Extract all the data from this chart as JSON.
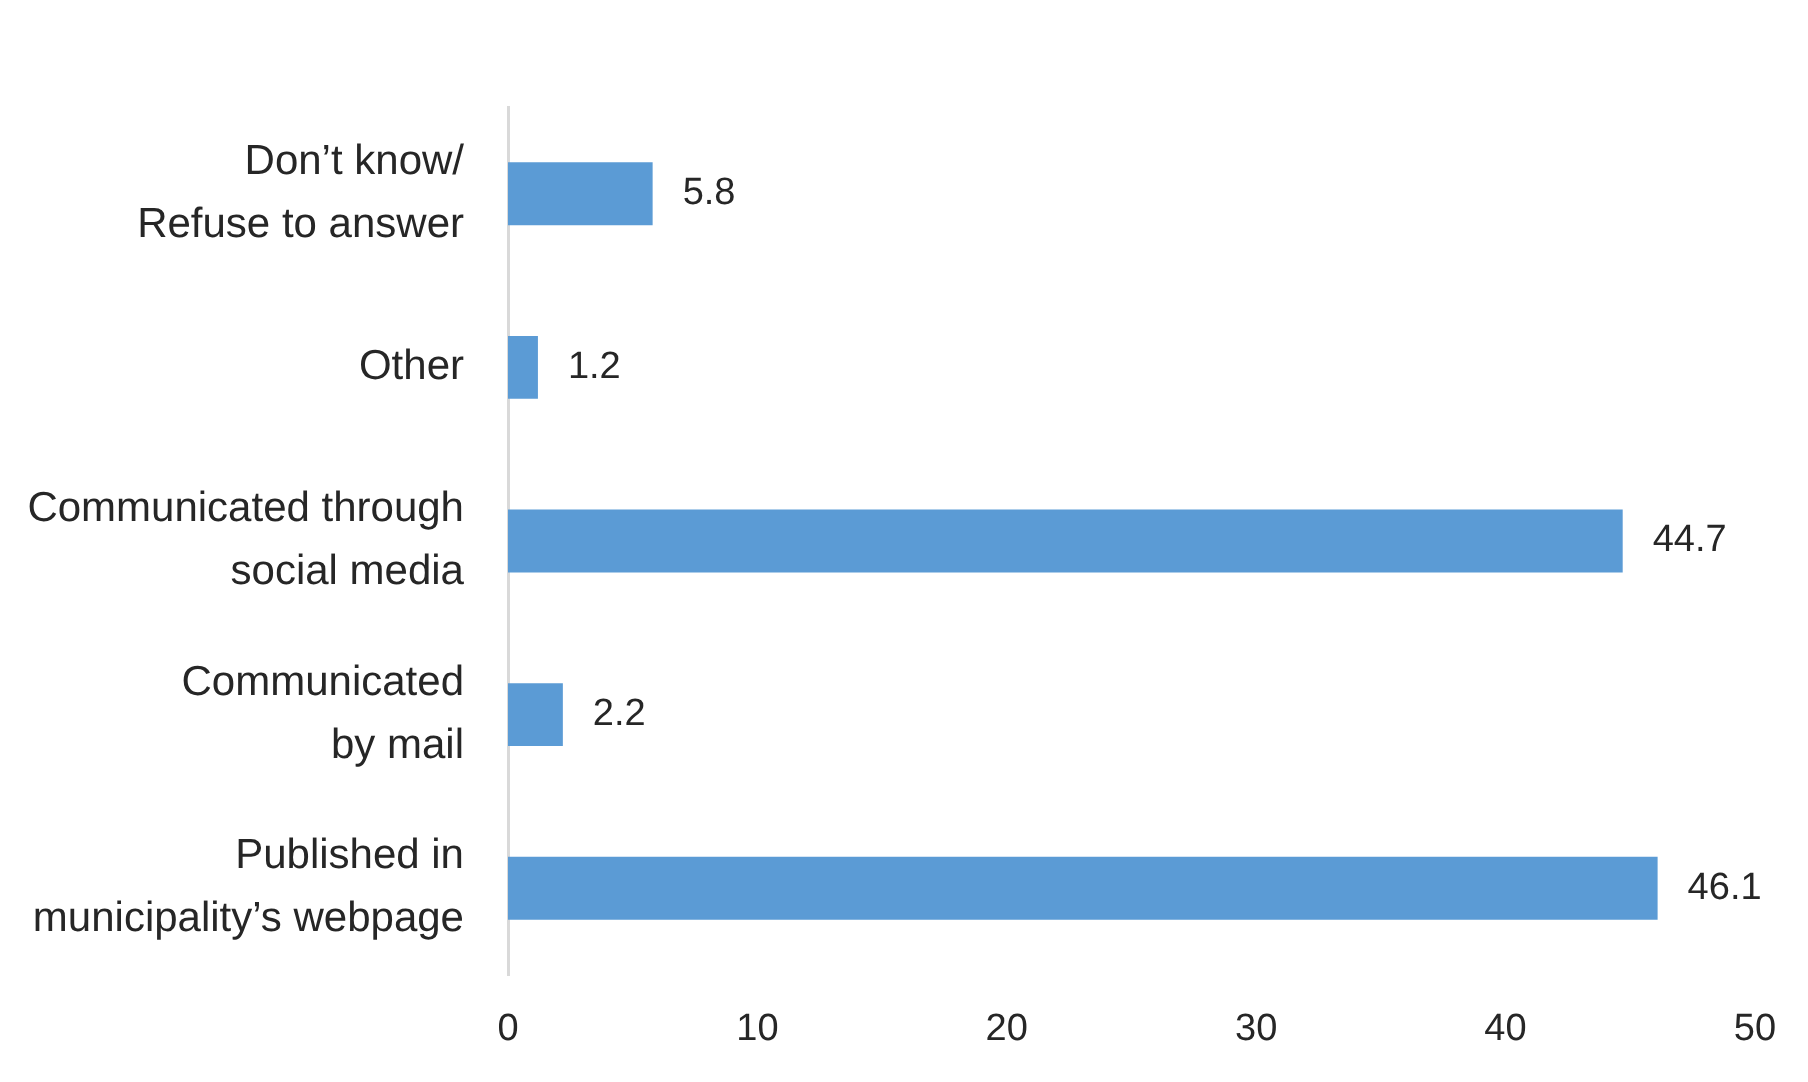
{
  "chart_data": {
    "type": "bar",
    "orientation": "horizontal",
    "categories": [
      "Don’t know/\nRefuse to answer",
      "Other",
      "Communicated through\nsocial media",
      "Communicated\nby mail",
      "Published in\nmunicipality’s webpage"
    ],
    "values": [
      5.8,
      1.2,
      44.7,
      2.2,
      46.1
    ],
    "color": "#5b9bd5",
    "xlim": [
      0,
      50
    ],
    "xticks": [
      0,
      10,
      20,
      30,
      40,
      50
    ],
    "data_labels": true
  }
}
